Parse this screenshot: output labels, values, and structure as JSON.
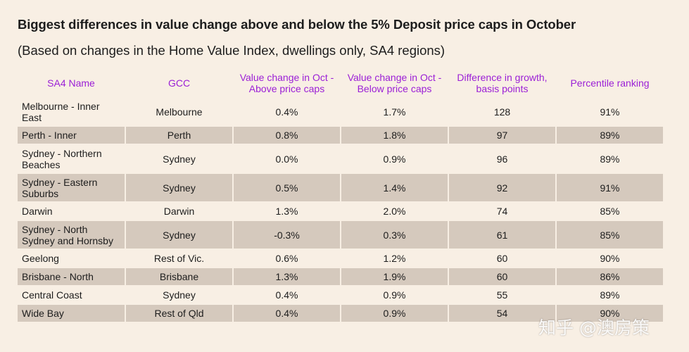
{
  "title": "Biggest differences in value change above and below the 5% Deposit price caps in October",
  "subtitle": "(Based on changes in the Home Value Index, dwellings only, SA4 regions)",
  "table": {
    "headers": [
      "SA4 Name",
      "GCC",
      "Value change in Oct - Above price caps",
      "Value change in Oct - Below price caps",
      "Difference in growth, basis points",
      "Percentile ranking"
    ],
    "rows": [
      {
        "name": "Melbourne - Inner East",
        "gcc": "Melbourne",
        "above": "0.4%",
        "below": "1.7%",
        "diff": "128",
        "pct": "91%"
      },
      {
        "name": "Perth - Inner",
        "gcc": "Perth",
        "above": "0.8%",
        "below": "1.8%",
        "diff": "97",
        "pct": "89%"
      },
      {
        "name": "Sydney - Northern Beaches",
        "gcc": "Sydney",
        "above": "0.0%",
        "below": "0.9%",
        "diff": "96",
        "pct": "89%"
      },
      {
        "name": "Sydney - Eastern Suburbs",
        "gcc": "Sydney",
        "above": "0.5%",
        "below": "1.4%",
        "diff": "92",
        "pct": "91%"
      },
      {
        "name": "Darwin",
        "gcc": "Darwin",
        "above": "1.3%",
        "below": "2.0%",
        "diff": "74",
        "pct": "85%"
      },
      {
        "name": "Sydney - North Sydney and Hornsby",
        "gcc": "Sydney",
        "above": "-0.3%",
        "below": "0.3%",
        "diff": "61",
        "pct": "85%"
      },
      {
        "name": "Geelong",
        "gcc": "Rest of Vic.",
        "above": "0.6%",
        "below": "1.2%",
        "diff": "60",
        "pct": "90%"
      },
      {
        "name": "Brisbane - North",
        "gcc": "Brisbane",
        "above": "1.3%",
        "below": "1.9%",
        "diff": "60",
        "pct": "86%"
      },
      {
        "name": "Central Coast",
        "gcc": "Sydney",
        "above": "0.4%",
        "below": "0.9%",
        "diff": "55",
        "pct": "89%"
      },
      {
        "name": "Wide Bay",
        "gcc": "Rest of Qld",
        "above": "0.4%",
        "below": "0.9%",
        "diff": "54",
        "pct": "90%"
      }
    ]
  },
  "watermark": "知乎 @澳房策",
  "colors": {
    "background": "#f8efe4",
    "header_text": "#9b1fd6",
    "shaded_row": "#d5c9bd"
  }
}
